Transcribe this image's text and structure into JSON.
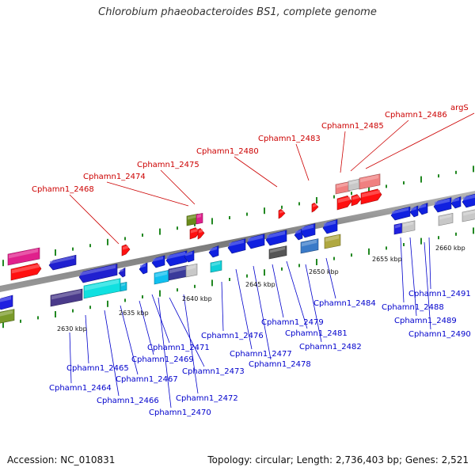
{
  "title": "Chlorobium phaeobacteroides BS1, complete genome",
  "footer": {
    "accession": "Accession: NC_010831",
    "topology": "Topology: circular; Length: 2,736,403 bp; Genes: 2,521"
  },
  "colors": {
    "plus_strand_labels": "#cc0000",
    "minus_strand_labels": "#0000cc",
    "backbone": "#888888",
    "kbp_ticks": "#228822"
  },
  "kbp_ticks": [
    "2630 kbp",
    "2635 kbp",
    "2640 kbp",
    "2645 kbp",
    "2650 kbp",
    "2655 kbp",
    "2660 kbp"
  ],
  "plus_labels": [
    "Cphamn1_2468",
    "Cphamn1_2474",
    "Cphamn1_2475",
    "Cphamn1_2480",
    "Cphamn1_2483",
    "Cphamn1_2485",
    "Cphamn1_2486",
    "argS"
  ],
  "minus_labels": [
    "Cphamn1_2464",
    "Cphamn1_2465",
    "Cphamn1_2466",
    "Cphamn1_2467",
    "Cphamn1_2469",
    "Cphamn1_2470",
    "Cphamn1_2471",
    "Cphamn1_2472",
    "Cphamn1_2473",
    "Cphamn1_2476",
    "Cphamn1_2477",
    "Cphamn1_2478",
    "Cphamn1_2479",
    "Cphamn1_2481",
    "Cphamn1_2482",
    "Cphamn1_2484",
    "Cphamn1_2488",
    "Cphamn1_2489",
    "Cphamn1_2490",
    "Cphamn1_2491"
  ]
}
